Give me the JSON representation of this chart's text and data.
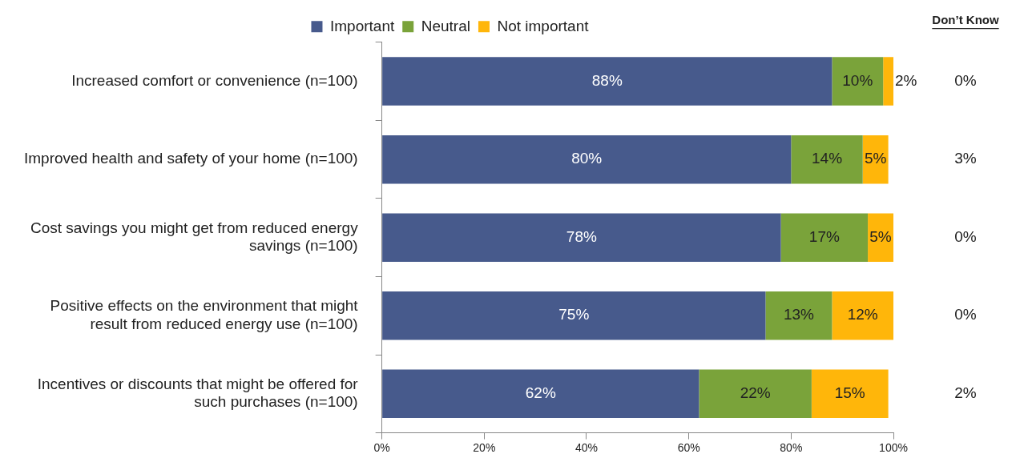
{
  "chart_data": {
    "type": "bar",
    "orientation": "horizontal",
    "stacked": true,
    "legend": "top",
    "categories": [
      "Increased comfort or convenience (n=100)",
      "Improved health and safety of your home (n=100)",
      "Cost savings you might get from reduced energy savings (n=100)",
      "Positive effects on the environment that might result from reduced energy use (n=100)",
      "Incentives or discounts that might be offered for such purchases (n=100)"
    ],
    "series": [
      {
        "name": "Important",
        "color": "#475a8c",
        "values": [
          88,
          80,
          78,
          75,
          62
        ],
        "value_labels": [
          "88%",
          "80%",
          "78%",
          "75%",
          "62%"
        ]
      },
      {
        "name": "Neutral",
        "color": "#7aa33a",
        "values": [
          10,
          14,
          17,
          13,
          22
        ],
        "value_labels": [
          "10%",
          "14%",
          "17%",
          "13%",
          "22%"
        ]
      },
      {
        "name": "Not important",
        "color": "#ffb60a",
        "values": [
          2,
          5,
          5,
          12,
          15
        ],
        "value_labels": [
          "2%",
          "5%",
          "5%",
          "12%",
          "15%"
        ]
      }
    ],
    "xlim": [
      0,
      100
    ],
    "xticks": [
      {
        "value": 0,
        "label": "0%"
      },
      {
        "value": 20,
        "label": "20%"
      },
      {
        "value": 40,
        "label": "40%"
      },
      {
        "value": 60,
        "label": "60%"
      },
      {
        "value": 80,
        "label": "80%"
      },
      {
        "value": 100,
        "label": "100%"
      }
    ],
    "grid": false,
    "annotations": [
      "Don’t Know",
      "0%",
      "3%",
      "0%",
      "0%",
      "2%"
    ]
  }
}
